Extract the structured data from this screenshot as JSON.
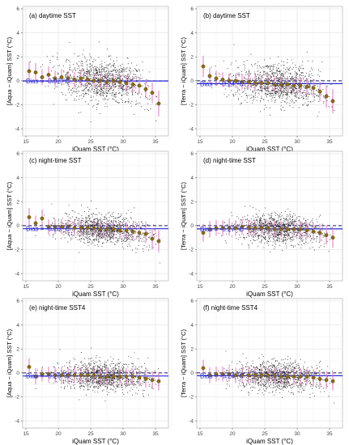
{
  "chart_data": [
    {
      "type": "scatter",
      "panel_label": "(a) daytime SST",
      "ylabel": "[Aqua − iQuam] SST (°C)",
      "xlabel": "iQuam SST (°C)",
      "bias_label": "Bias = -0.02 °C",
      "bias_value": -0.02,
      "x_ticks": [
        "15",
        "20",
        "25",
        "30",
        "35"
      ],
      "y_ticks": [
        "-4",
        "-2",
        "0",
        "2",
        "4",
        "6"
      ],
      "xlim": [
        14.5,
        37
      ],
      "ylim": [
        -4.6,
        6.2
      ],
      "binned_means": [
        {
          "x": 15.5,
          "y": 0.8
        },
        {
          "x": 16.5,
          "y": 0.7
        },
        {
          "x": 17.5,
          "y": 0.3
        },
        {
          "x": 18.5,
          "y": 0.5
        },
        {
          "x": 19.5,
          "y": 0.2
        },
        {
          "x": 20.5,
          "y": 0.3
        },
        {
          "x": 21.5,
          "y": 0.2
        },
        {
          "x": 22.5,
          "y": 0.1
        },
        {
          "x": 23.5,
          "y": 0.2
        },
        {
          "x": 24.5,
          "y": 0.1
        },
        {
          "x": 25.5,
          "y": 0.0
        },
        {
          "x": 26.5,
          "y": 0.0
        },
        {
          "x": 27.5,
          "y": -0.1
        },
        {
          "x": 28.5,
          "y": 0.0
        },
        {
          "x": 29.5,
          "y": -0.1
        },
        {
          "x": 30.5,
          "y": -0.2
        },
        {
          "x": 31.5,
          "y": -0.3
        },
        {
          "x": 32.5,
          "y": -0.4
        },
        {
          "x": 33.5,
          "y": -0.7
        },
        {
          "x": 34.5,
          "y": -1.0
        },
        {
          "x": 35.5,
          "y": -1.9
        }
      ]
    },
    {
      "type": "scatter",
      "panel_label": "(b) daytime SST",
      "ylabel": "[Terra − iQuam] SST (°C)",
      "xlabel": "iQuam SST (°C)",
      "bias_label": "Bias = -0.24 °C",
      "bias_value": -0.24,
      "x_ticks": [
        "15",
        "20",
        "25",
        "30",
        "35"
      ],
      "y_ticks": [
        "-4",
        "-2",
        "0",
        "2",
        "4",
        "6"
      ],
      "xlim": [
        14.5,
        37
      ],
      "ylim": [
        -4.6,
        6.2
      ],
      "binned_means": [
        {
          "x": 15.5,
          "y": 1.2
        },
        {
          "x": 16.5,
          "y": 0.4
        },
        {
          "x": 17.5,
          "y": 0.2
        },
        {
          "x": 18.5,
          "y": 0.1
        },
        {
          "x": 19.5,
          "y": 0.0
        },
        {
          "x": 20.5,
          "y": 0.0
        },
        {
          "x": 21.5,
          "y": -0.1
        },
        {
          "x": 22.5,
          "y": -0.1
        },
        {
          "x": 23.5,
          "y": -0.2
        },
        {
          "x": 24.5,
          "y": -0.2
        },
        {
          "x": 25.5,
          "y": -0.2
        },
        {
          "x": 26.5,
          "y": -0.3
        },
        {
          "x": 27.5,
          "y": -0.3
        },
        {
          "x": 28.5,
          "y": -0.3
        },
        {
          "x": 29.5,
          "y": -0.4
        },
        {
          "x": 30.5,
          "y": -0.4
        },
        {
          "x": 31.5,
          "y": -0.5
        },
        {
          "x": 32.5,
          "y": -0.6
        },
        {
          "x": 33.5,
          "y": -0.9
        },
        {
          "x": 34.5,
          "y": -1.3
        },
        {
          "x": 35.5,
          "y": -1.7
        }
      ]
    },
    {
      "type": "scatter",
      "panel_label": "(c) night-time SST",
      "ylabel": "[Aqua − iQuam] SST (°C)",
      "xlabel": "iQuam SST (°C)",
      "bias_label": "Bias = -0.26 °C",
      "bias_value": -0.26,
      "x_ticks": [
        "15",
        "20",
        "25",
        "30",
        "35"
      ],
      "y_ticks": [
        "-4",
        "-2",
        "0",
        "2",
        "4",
        "6"
      ],
      "xlim": [
        14.5,
        37
      ],
      "ylim": [
        -4.6,
        6.2
      ],
      "binned_means": [
        {
          "x": 15.5,
          "y": 0.7
        },
        {
          "x": 16.5,
          "y": 0.2
        },
        {
          "x": 17.5,
          "y": 0.6
        },
        {
          "x": 18.5,
          "y": -0.1
        },
        {
          "x": 19.5,
          "y": -0.1
        },
        {
          "x": 20.5,
          "y": -0.1
        },
        {
          "x": 21.5,
          "y": -0.1
        },
        {
          "x": 22.5,
          "y": -0.2
        },
        {
          "x": 23.5,
          "y": -0.2
        },
        {
          "x": 24.5,
          "y": -0.2
        },
        {
          "x": 25.5,
          "y": -0.2
        },
        {
          "x": 26.5,
          "y": -0.3
        },
        {
          "x": 27.5,
          "y": -0.3
        },
        {
          "x": 28.5,
          "y": -0.3
        },
        {
          "x": 29.5,
          "y": -0.4
        },
        {
          "x": 30.5,
          "y": -0.4
        },
        {
          "x": 31.5,
          "y": -0.5
        },
        {
          "x": 32.5,
          "y": -0.6
        },
        {
          "x": 33.5,
          "y": -0.7
        },
        {
          "x": 34.5,
          "y": -1.1
        },
        {
          "x": 35.5,
          "y": -1.3
        }
      ]
    },
    {
      "type": "scatter",
      "panel_label": "(d) night-time SST",
      "ylabel": "[Terra − iQuam] SST (°C)",
      "xlabel": "iQuam SST (°C)",
      "bias_label": "Bias = -0.27 °C",
      "bias_value": -0.27,
      "x_ticks": [
        "15",
        "20",
        "25",
        "30",
        "35"
      ],
      "y_ticks": [
        "-4",
        "-2",
        "0",
        "2",
        "4",
        "6"
      ],
      "xlim": [
        14.5,
        37
      ],
      "ylim": [
        -4.6,
        6.2
      ],
      "binned_means": [
        {
          "x": 15.5,
          "y": -0.6
        },
        {
          "x": 16.5,
          "y": -0.3
        },
        {
          "x": 17.5,
          "y": -0.2
        },
        {
          "x": 18.5,
          "y": -0.2
        },
        {
          "x": 19.5,
          "y": -0.2
        },
        {
          "x": 20.5,
          "y": -0.2
        },
        {
          "x": 21.5,
          "y": -0.1
        },
        {
          "x": 22.5,
          "y": -0.2
        },
        {
          "x": 23.5,
          "y": -0.2
        },
        {
          "x": 24.5,
          "y": -0.2
        },
        {
          "x": 25.5,
          "y": -0.2
        },
        {
          "x": 26.5,
          "y": -0.3
        },
        {
          "x": 27.5,
          "y": -0.3
        },
        {
          "x": 28.5,
          "y": -0.3
        },
        {
          "x": 29.5,
          "y": -0.3
        },
        {
          "x": 30.5,
          "y": -0.3
        },
        {
          "x": 31.5,
          "y": -0.4
        },
        {
          "x": 32.5,
          "y": -0.5
        },
        {
          "x": 33.5,
          "y": -0.6
        },
        {
          "x": 34.5,
          "y": -0.8
        },
        {
          "x": 35.5,
          "y": -1.0
        }
      ]
    },
    {
      "type": "scatter",
      "panel_label": "(e) night-time SST4",
      "ylabel": "[Aqua − iQuam] SST (°C)",
      "xlabel": "iQuam SST (°C)",
      "bias_label": "Bias = -0.26 °C",
      "bias_value": -0.26,
      "x_ticks": [
        "15",
        "20",
        "25",
        "30",
        "35"
      ],
      "y_ticks": [
        "-4",
        "-2",
        "0",
        "2",
        "4",
        "6"
      ],
      "xlim": [
        14.5,
        37
      ],
      "ylim": [
        -4.6,
        6.2
      ],
      "binned_means": [
        {
          "x": 15.5,
          "y": 0.5
        },
        {
          "x": 16.5,
          "y": -0.3
        },
        {
          "x": 17.5,
          "y": -0.1
        },
        {
          "x": 18.5,
          "y": -0.1
        },
        {
          "x": 19.5,
          "y": -0.2
        },
        {
          "x": 20.5,
          "y": -0.2
        },
        {
          "x": 21.5,
          "y": -0.2
        },
        {
          "x": 22.5,
          "y": -0.2
        },
        {
          "x": 23.5,
          "y": -0.2
        },
        {
          "x": 24.5,
          "y": -0.2
        },
        {
          "x": 25.5,
          "y": -0.2
        },
        {
          "x": 26.5,
          "y": -0.3
        },
        {
          "x": 27.5,
          "y": -0.3
        },
        {
          "x": 28.5,
          "y": -0.3
        },
        {
          "x": 29.5,
          "y": -0.3
        },
        {
          "x": 30.5,
          "y": -0.3
        },
        {
          "x": 31.5,
          "y": -0.3
        },
        {
          "x": 32.5,
          "y": -0.4
        },
        {
          "x": 33.5,
          "y": -0.5
        },
        {
          "x": 34.5,
          "y": -0.6
        },
        {
          "x": 35.5,
          "y": -0.7
        }
      ]
    },
    {
      "type": "scatter",
      "panel_label": "(f) night-time SST4",
      "ylabel": "[Terra − iQuam] SST (°C)",
      "xlabel": "iQuam SST (°C)",
      "bias_label": "Bias = -0.24 °C",
      "bias_value": -0.24,
      "x_ticks": [
        "15",
        "20",
        "25",
        "30",
        "35"
      ],
      "y_ticks": [
        "-4",
        "-2",
        "0",
        "2",
        "4",
        "6"
      ],
      "xlim": [
        14.5,
        37
      ],
      "ylim": [
        -4.6,
        6.2
      ],
      "binned_means": [
        {
          "x": 15.5,
          "y": 0.4
        },
        {
          "x": 16.5,
          "y": -0.2
        },
        {
          "x": 17.5,
          "y": -0.1
        },
        {
          "x": 18.5,
          "y": -0.1
        },
        {
          "x": 19.5,
          "y": -0.1
        },
        {
          "x": 20.5,
          "y": -0.2
        },
        {
          "x": 21.5,
          "y": -0.2
        },
        {
          "x": 22.5,
          "y": -0.2
        },
        {
          "x": 23.5,
          "y": -0.2
        },
        {
          "x": 24.5,
          "y": -0.2
        },
        {
          "x": 25.5,
          "y": -0.2
        },
        {
          "x": 26.5,
          "y": -0.2
        },
        {
          "x": 27.5,
          "y": -0.3
        },
        {
          "x": 28.5,
          "y": -0.3
        },
        {
          "x": 29.5,
          "y": -0.3
        },
        {
          "x": 30.5,
          "y": -0.3
        },
        {
          "x": 31.5,
          "y": -0.3
        },
        {
          "x": 32.5,
          "y": -0.4
        },
        {
          "x": 33.5,
          "y": -0.5
        },
        {
          "x": 34.5,
          "y": -0.6
        },
        {
          "x": 35.5,
          "y": -0.7
        }
      ]
    }
  ],
  "colors": {
    "points": "#000000",
    "mean_marker": "#8b6914",
    "error_bar": "#e377c2",
    "bias_line": "#2b2bd6",
    "zero_line": "#1a1a66",
    "grid": "#e6e6e6",
    "panel_border": "#bdbdbd"
  }
}
